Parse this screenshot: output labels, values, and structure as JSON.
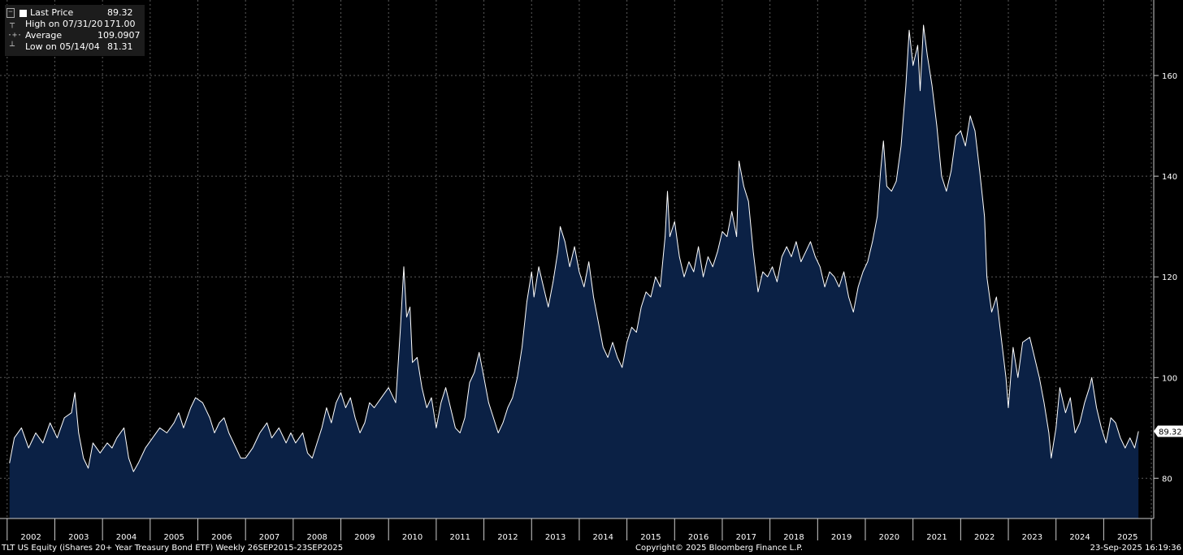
{
  "legend": {
    "last_price": {
      "label": "Last Price",
      "value": "89.32"
    },
    "high": {
      "label": "High on 07/31/20",
      "value": "171.00"
    },
    "average": {
      "label": "Average",
      "value": "109.0907"
    },
    "low": {
      "label": "Low on 05/14/04",
      "value": "81.31"
    }
  },
  "footer": {
    "ticker": "TLT US Equity (iShares 20+ Year Treasury Bond ETF)  Weekly 26SEP2015-23SEP2025",
    "copyright": "Copyright© 2025 Bloomberg Finance L.P.",
    "timestamp": "23-Sep-2025 16:19:36"
  },
  "colors": {
    "background": "#000000",
    "area_fill": "#0b2145",
    "line": "#ffffff",
    "grid": "#5a5a5a"
  },
  "chart_data": {
    "type": "area",
    "ylim": [
      72,
      175
    ],
    "xlim": [
      2001.85,
      2026.05
    ],
    "y_ticks": [
      80,
      100,
      120,
      140,
      160
    ],
    "x_tick_labels": [
      "2002",
      "2003",
      "2004",
      "2005",
      "2006",
      "2007",
      "2008",
      "2009",
      "2010",
      "2011",
      "2012",
      "2013",
      "2014",
      "2015",
      "2016",
      "2017",
      "2018",
      "2019",
      "2020",
      "2021",
      "2022",
      "2023",
      "2024",
      "2025"
    ],
    "grid": true,
    "last_value_label": "89.32",
    "series": [
      {
        "values": [
          [
            2002.05,
            83
          ],
          [
            2002.15,
            88
          ],
          [
            2002.3,
            90
          ],
          [
            2002.45,
            86
          ],
          [
            2002.6,
            89
          ],
          [
            2002.75,
            87
          ],
          [
            2002.9,
            91
          ],
          [
            2003.05,
            88
          ],
          [
            2003.2,
            92
          ],
          [
            2003.35,
            93
          ],
          [
            2003.42,
            97
          ],
          [
            2003.5,
            89
          ],
          [
            2003.6,
            84
          ],
          [
            2003.7,
            82
          ],
          [
            2003.8,
            87
          ],
          [
            2003.95,
            85
          ],
          [
            2004.1,
            87
          ],
          [
            2004.2,
            86
          ],
          [
            2004.3,
            88
          ],
          [
            2004.45,
            90
          ],
          [
            2004.55,
            84
          ],
          [
            2004.65,
            81.3
          ],
          [
            2004.75,
            83
          ],
          [
            2004.9,
            86
          ],
          [
            2005.05,
            88
          ],
          [
            2005.2,
            90
          ],
          [
            2005.35,
            89
          ],
          [
            2005.5,
            91
          ],
          [
            2005.6,
            93
          ],
          [
            2005.7,
            90
          ],
          [
            2005.85,
            94
          ],
          [
            2005.95,
            96
          ],
          [
            2006.1,
            95
          ],
          [
            2006.25,
            92
          ],
          [
            2006.35,
            89
          ],
          [
            2006.45,
            91
          ],
          [
            2006.55,
            92
          ],
          [
            2006.65,
            89
          ],
          [
            2006.8,
            86
          ],
          [
            2006.9,
            84
          ],
          [
            2007.0,
            84
          ],
          [
            2007.15,
            86
          ],
          [
            2007.3,
            89
          ],
          [
            2007.45,
            91
          ],
          [
            2007.55,
            88
          ],
          [
            2007.7,
            90
          ],
          [
            2007.85,
            87
          ],
          [
            2007.95,
            89
          ],
          [
            2008.05,
            87
          ],
          [
            2008.2,
            89
          ],
          [
            2008.3,
            85
          ],
          [
            2008.4,
            84
          ],
          [
            2008.5,
            87
          ],
          [
            2008.6,
            90
          ],
          [
            2008.7,
            94
          ],
          [
            2008.8,
            91
          ],
          [
            2008.9,
            95
          ],
          [
            2009.0,
            97
          ],
          [
            2009.1,
            94
          ],
          [
            2009.2,
            96
          ],
          [
            2009.3,
            92
          ],
          [
            2009.4,
            89
          ],
          [
            2009.5,
            91
          ],
          [
            2009.6,
            95
          ],
          [
            2009.7,
            94
          ],
          [
            2009.85,
            96
          ],
          [
            2010.0,
            98
          ],
          [
            2010.15,
            95
          ],
          [
            2010.25,
            110
          ],
          [
            2010.32,
            122
          ],
          [
            2010.38,
            112
          ],
          [
            2010.45,
            114
          ],
          [
            2010.5,
            103
          ],
          [
            2010.6,
            104
          ],
          [
            2010.7,
            98
          ],
          [
            2010.8,
            94
          ],
          [
            2010.9,
            96
          ],
          [
            2011.0,
            90
          ],
          [
            2011.1,
            95
          ],
          [
            2011.2,
            98
          ],
          [
            2011.3,
            94
          ],
          [
            2011.4,
            90
          ],
          [
            2011.5,
            89
          ],
          [
            2011.6,
            92
          ],
          [
            2011.7,
            99
          ],
          [
            2011.8,
            101
          ],
          [
            2011.9,
            105
          ],
          [
            2012.0,
            100
          ],
          [
            2012.1,
            95
          ],
          [
            2012.2,
            92
          ],
          [
            2012.3,
            89
          ],
          [
            2012.4,
            91
          ],
          [
            2012.5,
            94
          ],
          [
            2012.6,
            96
          ],
          [
            2012.7,
            100
          ],
          [
            2012.8,
            106
          ],
          [
            2012.9,
            115
          ],
          [
            2013.0,
            121
          ],
          [
            2013.05,
            116
          ],
          [
            2013.15,
            122
          ],
          [
            2013.25,
            118
          ],
          [
            2013.35,
            114
          ],
          [
            2013.45,
            119
          ],
          [
            2013.55,
            125
          ],
          [
            2013.6,
            130
          ],
          [
            2013.7,
            127
          ],
          [
            2013.8,
            122
          ],
          [
            2013.9,
            126
          ],
          [
            2014.0,
            121
          ],
          [
            2014.1,
            118
          ],
          [
            2014.2,
            123
          ],
          [
            2014.3,
            116
          ],
          [
            2014.4,
            111
          ],
          [
            2014.5,
            106
          ],
          [
            2014.6,
            104
          ],
          [
            2014.7,
            107
          ],
          [
            2014.8,
            104
          ],
          [
            2014.9,
            102
          ],
          [
            2015.0,
            107
          ],
          [
            2015.1,
            110
          ],
          [
            2015.2,
            109
          ],
          [
            2015.3,
            114
          ],
          [
            2015.4,
            117
          ],
          [
            2015.5,
            116
          ],
          [
            2015.6,
            120
          ],
          [
            2015.7,
            118
          ],
          [
            2015.8,
            128
          ],
          [
            2015.85,
            137
          ],
          [
            2015.9,
            128
          ],
          [
            2016.0,
            131
          ],
          [
            2016.1,
            124
          ],
          [
            2016.2,
            120
          ],
          [
            2016.3,
            123
          ],
          [
            2016.4,
            121
          ],
          [
            2016.5,
            126
          ],
          [
            2016.6,
            120
          ],
          [
            2016.7,
            124
          ],
          [
            2016.8,
            122
          ],
          [
            2016.9,
            125
          ],
          [
            2017.0,
            129
          ],
          [
            2017.1,
            128
          ],
          [
            2017.2,
            133
          ],
          [
            2017.3,
            128
          ],
          [
            2017.35,
            143
          ],
          [
            2017.45,
            138
          ],
          [
            2017.55,
            135
          ],
          [
            2017.65,
            125
          ],
          [
            2017.75,
            117
          ],
          [
            2017.85,
            121
          ],
          [
            2017.95,
            120
          ],
          [
            2018.05,
            122
          ],
          [
            2018.15,
            119
          ],
          [
            2018.25,
            124
          ],
          [
            2018.35,
            126
          ],
          [
            2018.45,
            124
          ],
          [
            2018.55,
            127
          ],
          [
            2018.65,
            123
          ],
          [
            2018.75,
            125
          ],
          [
            2018.85,
            127
          ],
          [
            2018.95,
            124
          ],
          [
            2019.05,
            122
          ],
          [
            2019.15,
            118
          ],
          [
            2019.25,
            121
          ],
          [
            2019.35,
            120
          ],
          [
            2019.45,
            118
          ],
          [
            2019.55,
            121
          ],
          [
            2019.65,
            116
          ],
          [
            2019.75,
            113
          ],
          [
            2019.85,
            118
          ],
          [
            2019.95,
            121
          ],
          [
            2020.05,
            123
          ],
          [
            2020.15,
            127
          ],
          [
            2020.25,
            132
          ],
          [
            2020.32,
            141
          ],
          [
            2020.38,
            147
          ],
          [
            2020.45,
            138
          ],
          [
            2020.55,
            137
          ],
          [
            2020.65,
            139
          ],
          [
            2020.75,
            146
          ],
          [
            2020.85,
            158
          ],
          [
            2020.92,
            169
          ],
          [
            2021.0,
            162
          ],
          [
            2021.1,
            166
          ],
          [
            2021.15,
            157
          ],
          [
            2021.22,
            170
          ],
          [
            2021.3,
            164
          ],
          [
            2021.4,
            158
          ],
          [
            2021.5,
            150
          ],
          [
            2021.6,
            140
          ],
          [
            2021.7,
            137
          ],
          [
            2021.8,
            141
          ],
          [
            2021.9,
            148
          ],
          [
            2022.0,
            149
          ],
          [
            2022.1,
            146
          ],
          [
            2022.2,
            152
          ],
          [
            2022.3,
            149
          ],
          [
            2022.4,
            141
          ],
          [
            2022.5,
            132
          ],
          [
            2022.55,
            120
          ],
          [
            2022.65,
            113
          ],
          [
            2022.75,
            116
          ],
          [
            2022.85,
            108
          ],
          [
            2022.95,
            100
          ],
          [
            2023.0,
            94
          ],
          [
            2023.1,
            106
          ],
          [
            2023.2,
            100
          ],
          [
            2023.3,
            107
          ],
          [
            2023.45,
            108
          ],
          [
            2023.55,
            104
          ],
          [
            2023.65,
            100
          ],
          [
            2023.75,
            95
          ],
          [
            2023.85,
            89
          ],
          [
            2023.9,
            84
          ],
          [
            2024.0,
            90
          ],
          [
            2024.08,
            98
          ],
          [
            2024.2,
            93
          ],
          [
            2024.3,
            96
          ],
          [
            2024.4,
            89
          ],
          [
            2024.5,
            91
          ],
          [
            2024.6,
            95
          ],
          [
            2024.7,
            98
          ],
          [
            2024.75,
            100
          ],
          [
            2024.85,
            94
          ],
          [
            2024.95,
            90
          ],
          [
            2025.05,
            87
          ],
          [
            2025.15,
            92
          ],
          [
            2025.25,
            91
          ],
          [
            2025.35,
            88
          ],
          [
            2025.45,
            86
          ],
          [
            2025.55,
            88
          ],
          [
            2025.65,
            86
          ],
          [
            2025.73,
            89.32
          ]
        ]
      }
    ]
  }
}
